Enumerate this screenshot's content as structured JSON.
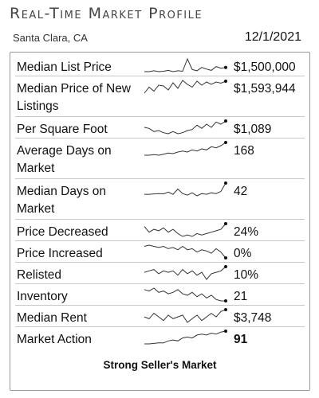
{
  "header": {
    "title": "Real-Time Market Profile",
    "location": "Santa Clara, CA",
    "date": "12/1/2021"
  },
  "metrics": [
    {
      "label": "Median List Price",
      "value": "$1,500,000",
      "trend": [
        3,
        3,
        3.2,
        3,
        3.1,
        3.3,
        3,
        3.2,
        3.1,
        6,
        3.5,
        3.2,
        4,
        3.6,
        3.3,
        4.2,
        3.8,
        4
      ]
    },
    {
      "label": "Median Price of New Listings",
      "value": "$1,593,944",
      "trend": [
        2,
        3.5,
        2.5,
        4,
        3.8,
        2.8,
        4.6,
        3.2,
        5.2,
        4.2,
        3.5,
        5,
        4,
        4.8,
        4.2,
        4.8,
        4.5,
        5
      ]
    },
    {
      "label": "Per Square Foot",
      "value": "$1,089",
      "trend": [
        4,
        3.8,
        3.2,
        3.4,
        3,
        2.8,
        3.2,
        2.8,
        3,
        3.4,
        3.6,
        4.4,
        3.8,
        4.6,
        4,
        5,
        4.6,
        5.2
      ]
    },
    {
      "label": "Average Days on Market",
      "value": "168",
      "trend": [
        2,
        2,
        2.1,
        2,
        2.2,
        2.4,
        2.3,
        2.6,
        2.8,
        2.6,
        3,
        2.8,
        3.2,
        3,
        3.6,
        3.4,
        3.8,
        4.4
      ]
    },
    {
      "label": "Median Days on Market",
      "value": "42",
      "trend": [
        3,
        3,
        3.1,
        3.2,
        3.1,
        3.6,
        3,
        4.4,
        3.2,
        2.8,
        3.4,
        2.6,
        3.2,
        3,
        3.4,
        3.2,
        3.8,
        6
      ]
    },
    {
      "label": "Price Decreased",
      "value": "24%",
      "trend": [
        4,
        3.2,
        3.6,
        3.4,
        3.8,
        3.2,
        3.6,
        3,
        2.6,
        2.8,
        2.6,
        3,
        2.8,
        3,
        3.2,
        3.4,
        3.6,
        4.4
      ]
    },
    {
      "label": "Price Increased",
      "value": "0%",
      "trend": [
        4,
        4.2,
        4,
        3.8,
        4,
        3.6,
        3.8,
        3.4,
        4,
        3.4,
        3.6,
        3,
        3.4,
        3.2,
        2.8,
        3.6,
        3,
        2
      ]
    },
    {
      "label": "Relisted",
      "value": "10%",
      "trend": [
        3.2,
        3.4,
        3.6,
        3,
        3.4,
        3.2,
        3.4,
        2.8,
        3.6,
        3,
        3.4,
        2.8,
        3.2,
        2.2,
        3,
        3.2,
        3.4,
        4
      ]
    },
    {
      "label": "Inventory",
      "value": "21",
      "trend": [
        4.2,
        4,
        4.4,
        3.8,
        4,
        3.6,
        3.8,
        4.2,
        3.6,
        3.4,
        3.8,
        3.2,
        3.6,
        3,
        3.4,
        2.8,
        2.6,
        2.6
      ]
    },
    {
      "label": "Median Rent",
      "value": "$3,748",
      "trend": [
        3.6,
        3.4,
        4,
        3.6,
        3.2,
        3.8,
        3.4,
        3.6,
        3.8,
        3,
        3.4,
        3.8,
        3.2,
        3.6,
        4,
        3.6,
        4.2,
        4.4
      ]
    },
    {
      "label": "Market Action",
      "value": "91",
      "trend": [
        2,
        2,
        2.1,
        2.2,
        2.2,
        2.6,
        2.8,
        2.6,
        3.2,
        3.4,
        3.2,
        3.8,
        4,
        3.8,
        4.2,
        4,
        4.4,
        4.6
      ],
      "bold": true
    }
  ],
  "footer": {
    "status": "Strong Seller's Market"
  }
}
